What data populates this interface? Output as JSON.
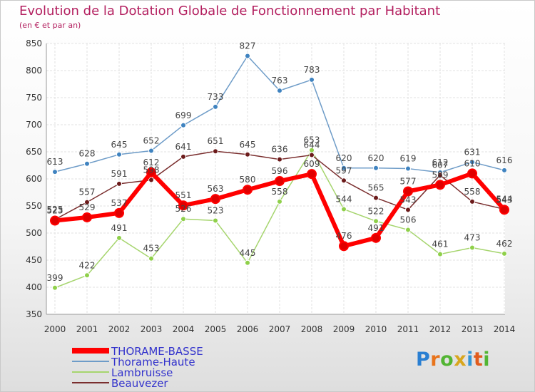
{
  "title": "Evolution de la Dotation Globale de Fonctionnement par Habitant",
  "subtitle": "(en € et par an)",
  "logo": {
    "text": "Proxiti",
    "letter_colors": [
      "#2a7fd2",
      "#e8741c",
      "#52b533",
      "#d8a61e",
      "#3396d6",
      "#e15c1d",
      "#52b533"
    ]
  },
  "chart_data": {
    "type": "line",
    "x": [
      "2000",
      "2001",
      "2002",
      "2003",
      "2004",
      "2005",
      "2006",
      "2007",
      "2008",
      "2009",
      "2010",
      "2011",
      "2012",
      "2013",
      "2014"
    ],
    "ylim": [
      350,
      850
    ],
    "yticks": [
      350,
      400,
      450,
      500,
      550,
      600,
      650,
      700,
      750,
      800,
      850
    ],
    "grid": true,
    "legend_position": "bottom-left",
    "series": [
      {
        "name": "Thorame-Haute",
        "color": "#6e9cc8",
        "marker": "#3f83c0",
        "values": [
          613,
          628,
          645,
          652,
          699,
          733,
          827,
          763,
          783,
          620,
          620,
          619,
          612,
          631,
          616
        ],
        "labels": [
          "613",
          "628",
          "645",
          "652",
          "699",
          "733",
          "827",
          "763",
          "783",
          "620",
          "620",
          "619",
          "612",
          "631",
          "616"
        ]
      },
      {
        "name": "Lambruisse",
        "color": "#a6d56e",
        "marker": "#8fd04a",
        "values": [
          399,
          422,
          491,
          453,
          526,
          523,
          445,
          558,
          653,
          544,
          522,
          506,
          461,
          473,
          462
        ],
        "labels": [
          "399",
          "422",
          "491",
          "453",
          "526",
          "523",
          "445",
          "558",
          "653",
          "544",
          "522",
          "506",
          "461",
          "473",
          "462"
        ]
      },
      {
        "name": "Beauvezer",
        "color": "#7a2e2e",
        "marker": "#6b1a1a",
        "values": [
          525,
          557,
          591,
          598,
          641,
          651,
          645,
          636,
          644,
          597,
          565,
          543,
          607,
          558,
          544
        ],
        "labels": [
          "525",
          "557",
          "591",
          "598",
          "641",
          "651",
          "645",
          "636",
          "644",
          "597",
          "565",
          "543",
          "607",
          "558",
          "544"
        ]
      },
      {
        "name": "THORAME-BASSE",
        "color": "#ff0000",
        "marker": "#e00000",
        "thick": true,
        "values": [
          523,
          529,
          537,
          612,
          551,
          563,
          580,
          596,
          609,
          476,
          491,
          577,
          589,
          610,
          543
        ],
        "labels": [
          "523",
          "529",
          "537",
          "612",
          "551",
          "563",
          "580",
          "596",
          "609",
          "476",
          "491",
          "577",
          "589",
          "610",
          "543"
        ]
      }
    ],
    "legend": [
      {
        "name": "THORAME-BASSE",
        "color": "#ff0000",
        "thick": true
      },
      {
        "name": "Thorame-Haute",
        "color": "#6e9cc8"
      },
      {
        "name": "Lambruisse",
        "color": "#a6d56e"
      },
      {
        "name": "Beauvezer",
        "color": "#7a2e2e"
      }
    ]
  }
}
